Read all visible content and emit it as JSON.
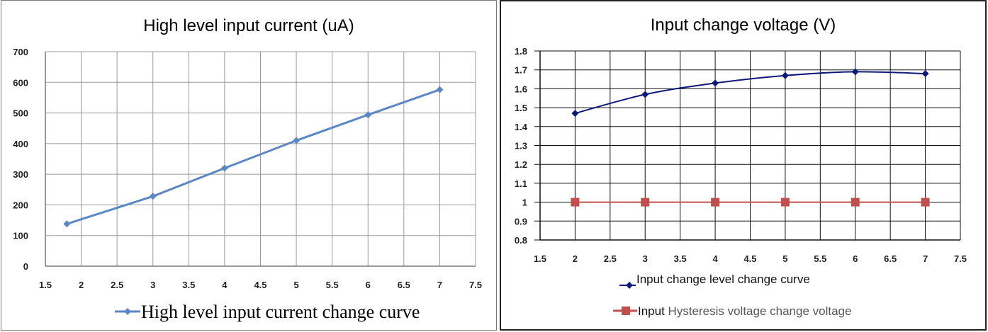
{
  "chart_data": [
    {
      "type": "line",
      "title": "High level input current (uA)",
      "xlim": [
        1.5,
        7.5
      ],
      "ylim": [
        0,
        700
      ],
      "x_ticks": [
        "1.5",
        "2",
        "2.5",
        "3",
        "3.5",
        "4",
        "4.5",
        "5",
        "5.5",
        "6",
        "6.5",
        "7",
        "7.5"
      ],
      "y_ticks": [
        "0",
        "100",
        "200",
        "300",
        "400",
        "500",
        "600",
        "700"
      ],
      "grid": true,
      "legend_position": "bottom",
      "series": [
        {
          "name": "High level input current change curve",
          "color": "#5b87c5",
          "marker": "diamond",
          "x": [
            1.8,
            3,
            4,
            5,
            6,
            7
          ],
          "values": [
            138,
            228,
            320,
            410,
            494,
            576
          ]
        }
      ]
    },
    {
      "type": "line",
      "title": "Input change voltage (V)",
      "xlim": [
        1.5,
        7.5
      ],
      "ylim": [
        0.8,
        1.8
      ],
      "x_ticks": [
        "1.5",
        "2",
        "2.5",
        "3",
        "3.5",
        "4",
        "4.5",
        "5",
        "5.5",
        "6",
        "6.5",
        "7",
        "7.5"
      ],
      "y_ticks": [
        "0.8",
        "0.9",
        "1",
        "1.1",
        "1.2",
        "1.3",
        "1.4",
        "1.5",
        "1.6",
        "1.7",
        "1.8"
      ],
      "grid": true,
      "legend_position": "bottom",
      "series": [
        {
          "name": "Input change level change curve",
          "color": "#0d1a7a",
          "marker": "diamond",
          "x": [
            2,
            3,
            4,
            5,
            6,
            7
          ],
          "values": [
            1.47,
            1.57,
            1.63,
            1.67,
            1.69,
            1.68
          ]
        },
        {
          "name_prefix": "Input",
          "name_suffix": " Hysteresis voltage change voltage",
          "color": "#c0504d",
          "marker": "square",
          "x": [
            2,
            3,
            4,
            5,
            6,
            7
          ],
          "values": [
            1,
            1,
            1,
            1,
            1,
            1
          ]
        }
      ]
    }
  ]
}
